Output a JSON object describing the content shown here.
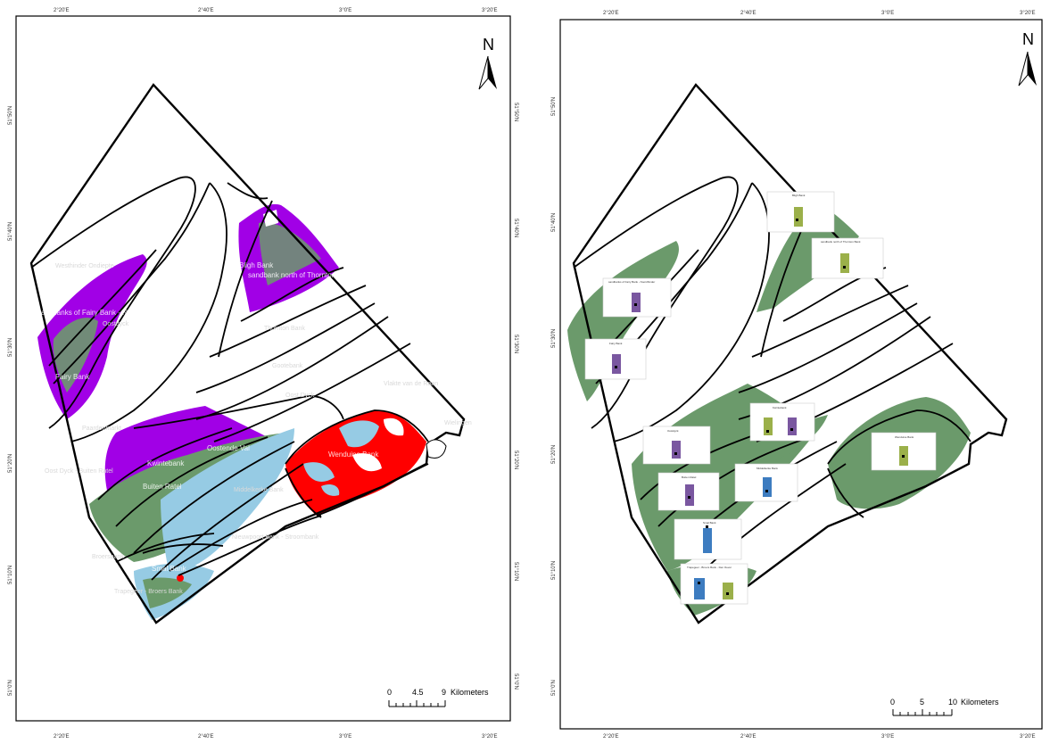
{
  "left_map": {
    "top_longitudes": [
      "2°20'E",
      "2°40'E",
      "3°0'E",
      "3°20'E"
    ],
    "bottom_longitudes": [
      "2°20'E",
      "2°40'E",
      "3°0'E",
      "3°20'E"
    ],
    "latitudes": [
      "51°50'N",
      "51°40'N",
      "51°30'N",
      "51°20'N",
      "51°10'N",
      "51°0'N"
    ],
    "north_label": "N",
    "scale": {
      "ticks": [
        "0",
        "4.5",
        "9"
      ],
      "unit": "Kilometers"
    },
    "labels": {
      "bligh_bank": "Bligh Bank",
      "sandbank_north_thornton": "sandbank north of Thornton Bank",
      "fairy_bank": "Fairy Bank",
      "sandbanks_fairy_bank": "sandbanks of Fairy Bank - Noordhinder",
      "westhinder_pit": "Westhinder Ondiepte",
      "oostdyck": "Oostdyck",
      "thornton_bank": "Thornton Bank",
      "gootebank": "Gootebank",
      "oost_dyck_west": "Oost Dyck",
      "ooste_val": "Oostende Val",
      "wenduine_bank": "Wenduine Bank",
      "zuid_frontier": "Zuid Frontier",
      "kwintebank": "Kwintebank",
      "buiten_ratel": "Buiten Ratel",
      "middelkerke_bank": "Middelkerke Bank",
      "oost_dyck_bank": "Oost Dyck - Buiten Ratel",
      "nieuwpoort_bank": "Nieuwpoort Bank - Stroombank",
      "broers_bank": "Broersbank",
      "smal_bank": "Smal Bank",
      "trapegeer": "Trapegeer - Broers Bank",
      "akkaert": "Akkaertbank",
      "paardenmarkt": "Paardenmarkt",
      "vlakte_raan": "Vlakte van de Raan",
      "wielingen": "Wielingen"
    },
    "colors": {
      "purple": "#a100e6",
      "green": "#6b9a6b",
      "light_blue": "#96cbe4",
      "red": "#ff0000"
    }
  },
  "right_map": {
    "top_longitudes": [
      "2°20'E",
      "2°40'E",
      "3°0'E",
      "3°20'E"
    ],
    "bottom_longitudes": [
      "2°20'E",
      "2°40'E",
      "3°0'E",
      "3°20'E"
    ],
    "latitudes": [
      "51°50'N",
      "51°40'N",
      "51°30'N",
      "51°20'N",
      "51°10'N",
      "51°0'N"
    ],
    "north_label": "N",
    "scale": {
      "ticks": [
        "0",
        "5",
        "10"
      ],
      "unit": "Kilometers"
    },
    "colors": {
      "green": "#6b9a6b",
      "olive_bar": "#9bb04a",
      "purple_bar": "#7a57a0",
      "blue_bar": "#3d7cc0"
    },
    "mini_charts": [
      {
        "title": "Bligh Bank",
        "bars": [
          "olive"
        ]
      },
      {
        "title": "sandbank north of Thornton Bank",
        "bars": [
          "olive"
        ]
      },
      {
        "title": "sandbanks of Fairy Bank - Noordhinder",
        "bars": [
          "purple"
        ]
      },
      {
        "title": "Fairy Bank",
        "bars": [
          "purple"
        ]
      },
      {
        "title": "Oostdyck",
        "bars": [
          "purple"
        ]
      },
      {
        "title": "Kwintebank",
        "bars": [
          "olive",
          "purple"
        ]
      },
      {
        "title": "Wenduine Bank",
        "bars": [
          "olive"
        ]
      },
      {
        "title": "Buiten Ratel",
        "bars": [
          "purple"
        ]
      },
      {
        "title": "Middelkerke Bank",
        "bars": [
          "blue"
        ]
      },
      {
        "title": "Smal Bank",
        "bars": [
          "blue"
        ]
      },
      {
        "title": "Trapegeer - Broers Bank - Den Oever",
        "bars": [
          "blue",
          "olive"
        ]
      }
    ]
  }
}
